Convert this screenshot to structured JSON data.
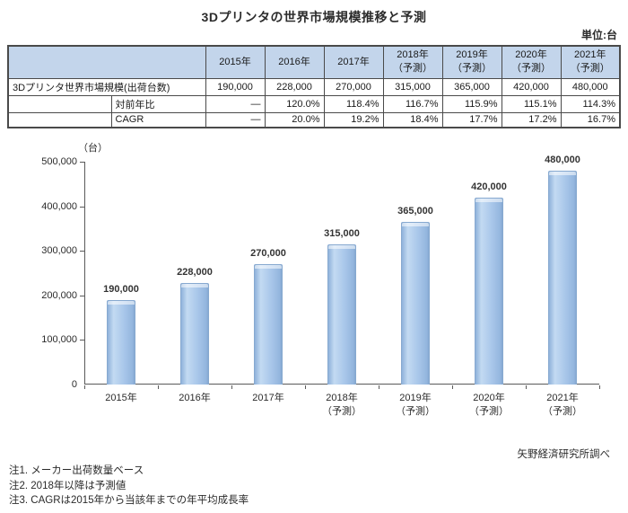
{
  "title": "3Dプリンタの世界市場規模推移と予測",
  "unit_label": "単位:台",
  "table": {
    "col_headers": [
      "2015年",
      "2016年",
      "2017年",
      "2018年\n（予測）",
      "2019年\n（予測）",
      "2020年\n（予測）",
      "2021年\n（予測）"
    ],
    "rows": [
      {
        "label": "3Dプリンタ世界市場規模(出荷台数)",
        "values": [
          "190,000",
          "228,000",
          "270,000",
          "315,000",
          "365,000",
          "420,000",
          "480,000"
        ]
      },
      {
        "label": "対前年比",
        "values": [
          "―",
          "120.0%",
          "118.4%",
          "116.7%",
          "115.9%",
          "115.1%",
          "114.3%"
        ]
      },
      {
        "label": "CAGR",
        "values": [
          "―",
          "20.0%",
          "19.2%",
          "18.4%",
          "17.7%",
          "17.2%",
          "16.7%"
        ]
      }
    ]
  },
  "chart_data": {
    "type": "bar",
    "title": "3Dプリンタの世界市場規模推移と予測",
    "unit": "（台）",
    "categories": [
      "2015年",
      "2016年",
      "2017年",
      "2018年\n（予測）",
      "2019年\n（予測）",
      "2020年\n（予測）",
      "2021年\n（予測）"
    ],
    "values": [
      190000,
      228000,
      270000,
      315000,
      365000,
      420000,
      480000
    ],
    "data_labels": [
      "190,000",
      "228,000",
      "270,000",
      "315,000",
      "365,000",
      "420,000",
      "480,000"
    ],
    "ylim": [
      0,
      500000
    ],
    "ytick_interval": 100000,
    "ytick_labels": [
      "0",
      "100,000",
      "200,000",
      "300,000",
      "400,000",
      "500,000"
    ],
    "xlabel": "",
    "ylabel": "（台）",
    "grid": false,
    "legend": "none",
    "bar_color": "#a6c4e8"
  },
  "footer": {
    "source": "矢野経済研究所調べ",
    "notes": [
      "注1. メーカー出荷数量ベース",
      "注2. 2018年以降は予測値",
      "注3. CAGRは2015年から当該年までの年平均成長率"
    ]
  }
}
